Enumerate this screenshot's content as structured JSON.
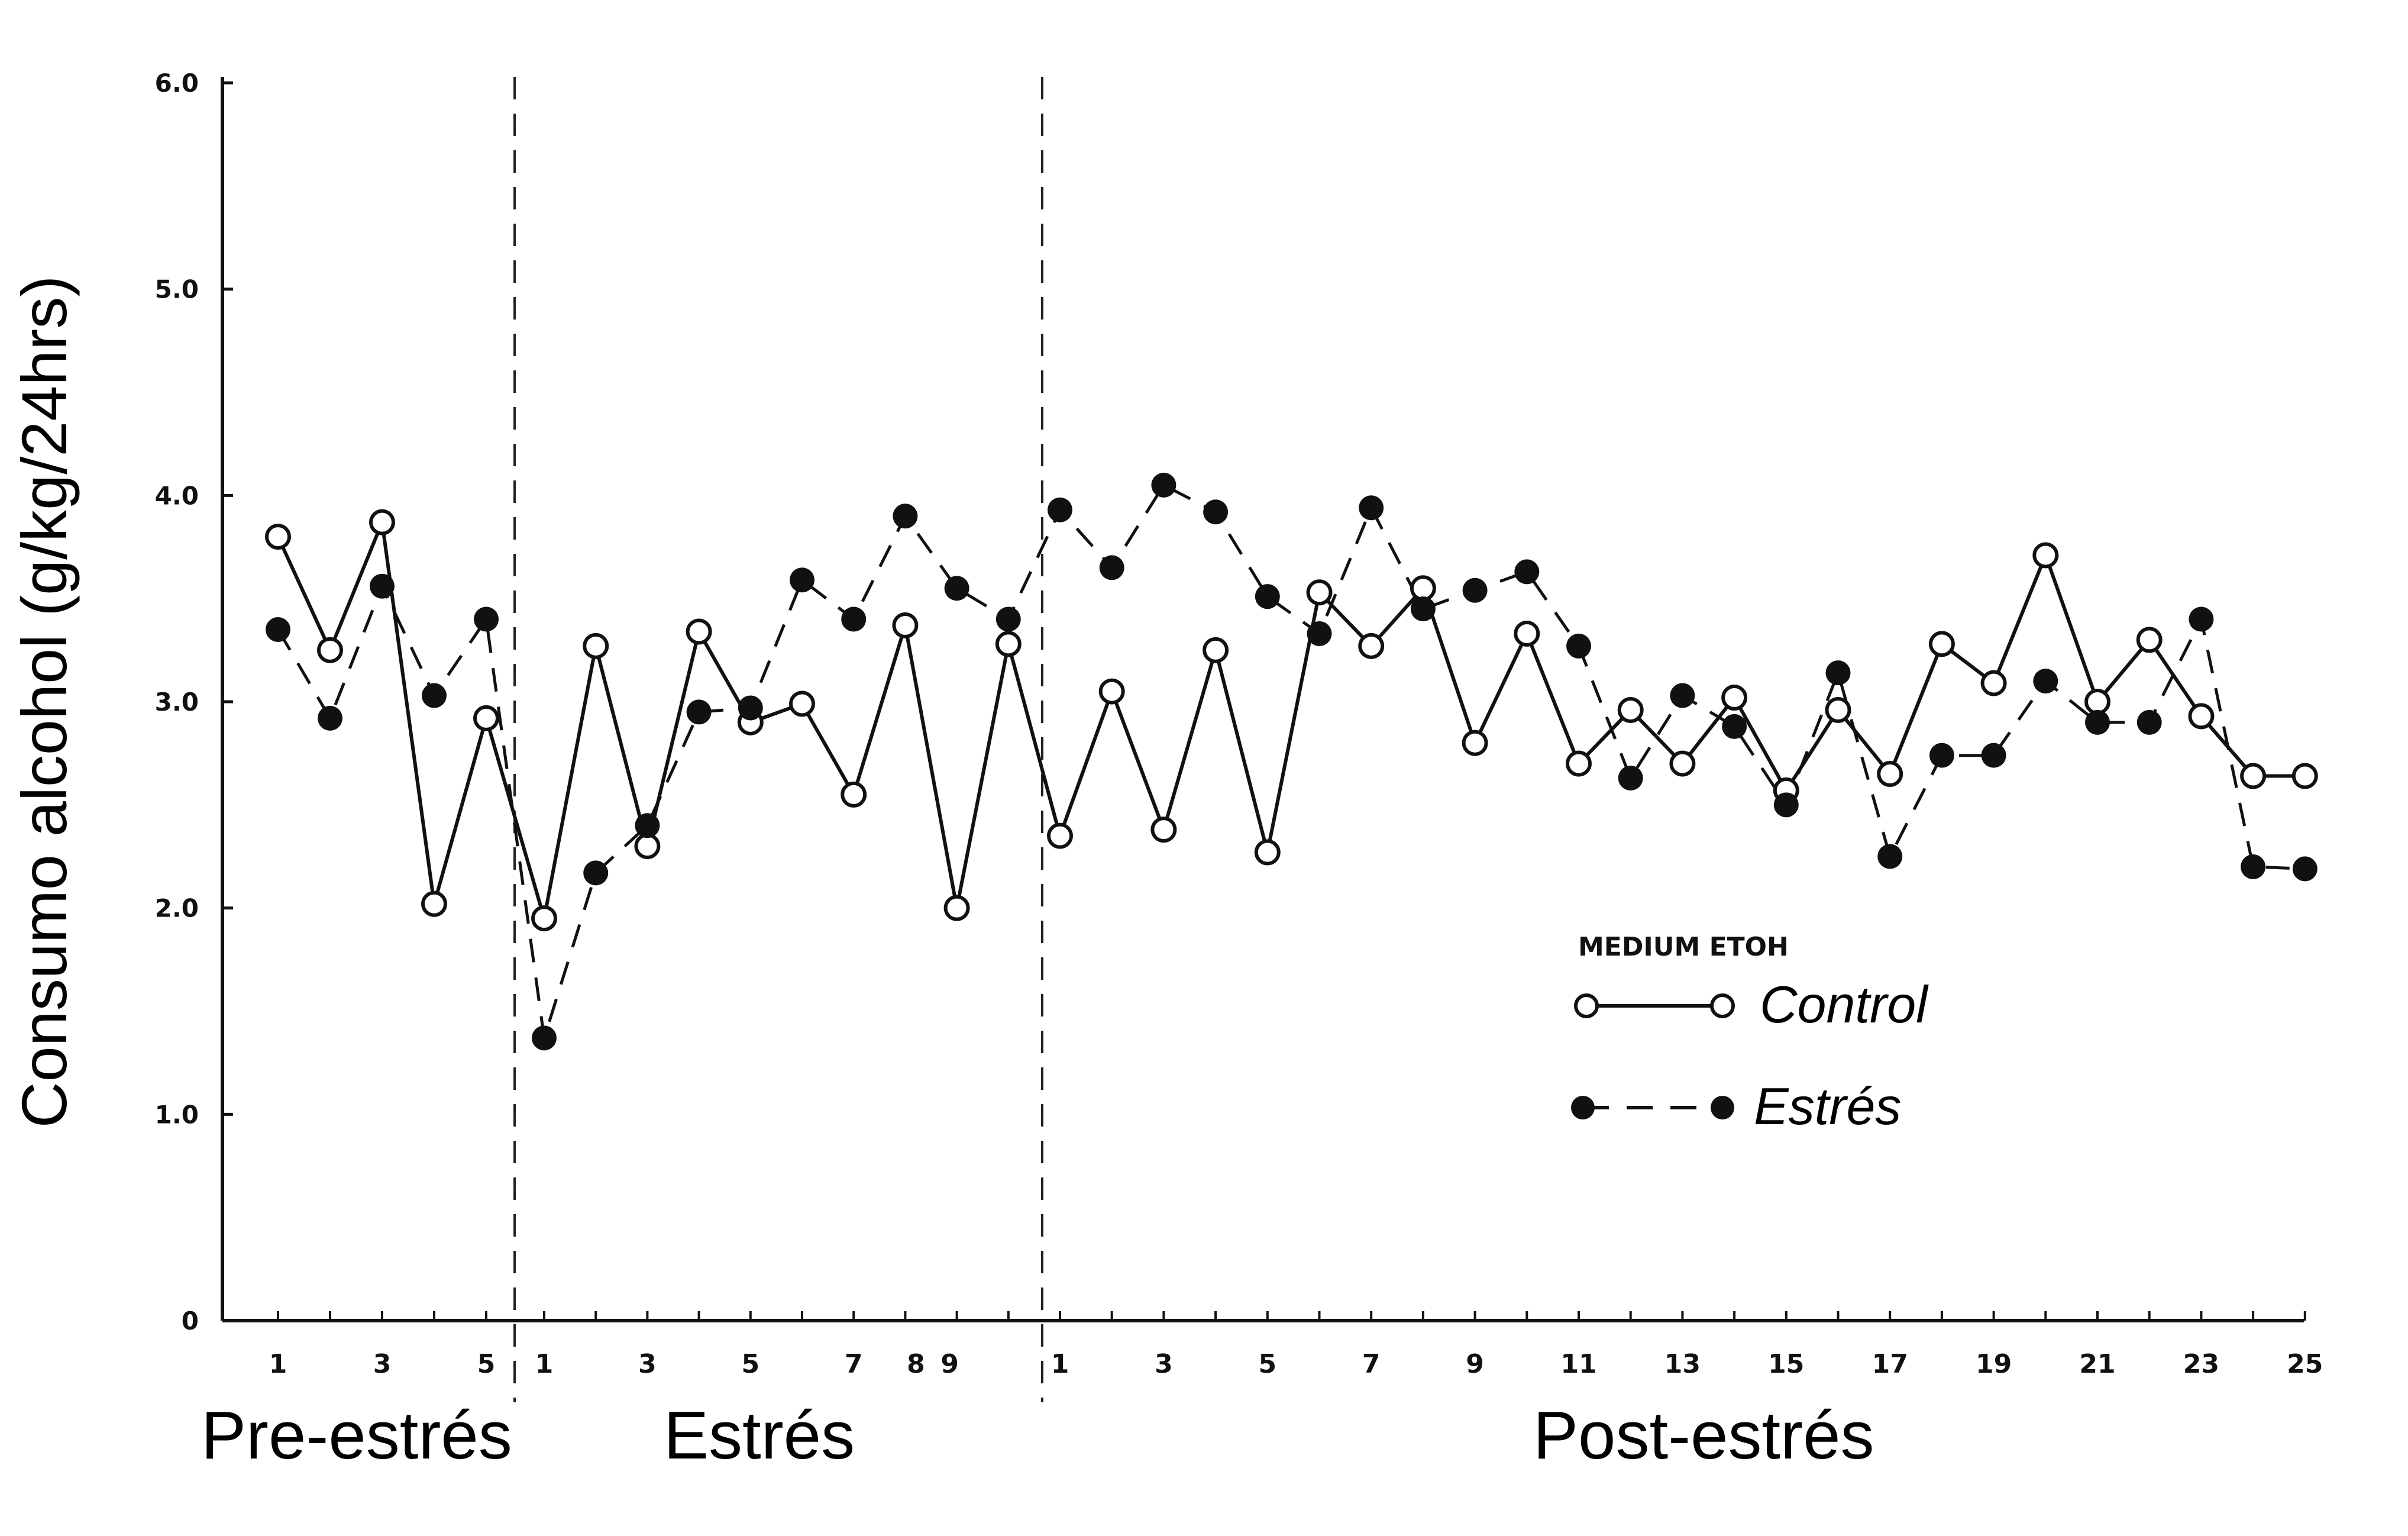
{
  "chart_data": {
    "type": "line",
    "ylabel": "Consumo alcohol (g/kg/24hrs)",
    "ylim": [
      0,
      6
    ],
    "yticks": [
      {
        "value": 0,
        "label": "0"
      },
      {
        "value": 1,
        "label": "1.0"
      },
      {
        "value": 2,
        "label": "2.0"
      },
      {
        "value": 3,
        "label": "3.0"
      },
      {
        "value": 4,
        "label": "4.0"
      },
      {
        "value": 5,
        "label": "5.0"
      },
      {
        "value": 6,
        "label": "6.0"
      }
    ],
    "phases": [
      {
        "name": "Pre-estrés",
        "days": [
          1,
          2,
          3,
          4,
          5
        ],
        "tick_labels": [
          "1",
          "3",
          "5"
        ]
      },
      {
        "name": "Estrés",
        "days": [
          1,
          2,
          3,
          4,
          5,
          6,
          7,
          8,
          9,
          10
        ],
        "tick_labels": [
          "1",
          "3",
          "5",
          "7",
          "8",
          "9"
        ]
      },
      {
        "name": "Post-estrés",
        "days": [
          1,
          2,
          3,
          4,
          5,
          6,
          7,
          8,
          9,
          10,
          11,
          12,
          13,
          14,
          15,
          16,
          17,
          18,
          19,
          20,
          21,
          22,
          23,
          24,
          25
        ],
        "tick_labels": [
          "1",
          "3",
          "5",
          "7",
          "9",
          "11",
          "13",
          "15",
          "17",
          "19",
          "21",
          "23",
          "25"
        ]
      }
    ],
    "legend": {
      "title": "MEDIUM ETOH",
      "position": "lower-right"
    },
    "series": [
      {
        "name": "Control",
        "marker": "open-circle",
        "line": "solid",
        "values": [
          3.8,
          3.25,
          3.87,
          2.02,
          2.92,
          1.95,
          3.27,
          2.3,
          3.34,
          2.9,
          2.99,
          2.55,
          3.37,
          2.0,
          3.28,
          2.35,
          3.05,
          2.38,
          3.25,
          2.27,
          3.53,
          3.27,
          3.55,
          2.8,
          3.33,
          2.7,
          2.96,
          2.7,
          3.02,
          2.57,
          2.96,
          2.65,
          3.28,
          3.09,
          3.71,
          3.0,
          3.3,
          2.93,
          2.64,
          2.64
        ]
      },
      {
        "name": "Estrés",
        "marker": "filled-circle",
        "line": "dashed",
        "values": [
          3.35,
          2.92,
          3.56,
          3.03,
          3.4,
          1.37,
          2.17,
          2.4,
          2.95,
          2.97,
          3.59,
          3.4,
          3.9,
          3.55,
          3.4,
          3.93,
          3.65,
          4.05,
          3.92,
          3.51,
          3.33,
          3.94,
          3.45,
          3.54,
          3.63,
          3.27,
          2.63,
          3.03,
          2.88,
          2.5,
          3.14,
          2.25,
          2.74,
          2.74,
          3.1,
          2.9,
          2.9,
          3.4,
          2.2,
          2.19
        ]
      }
    ]
  }
}
